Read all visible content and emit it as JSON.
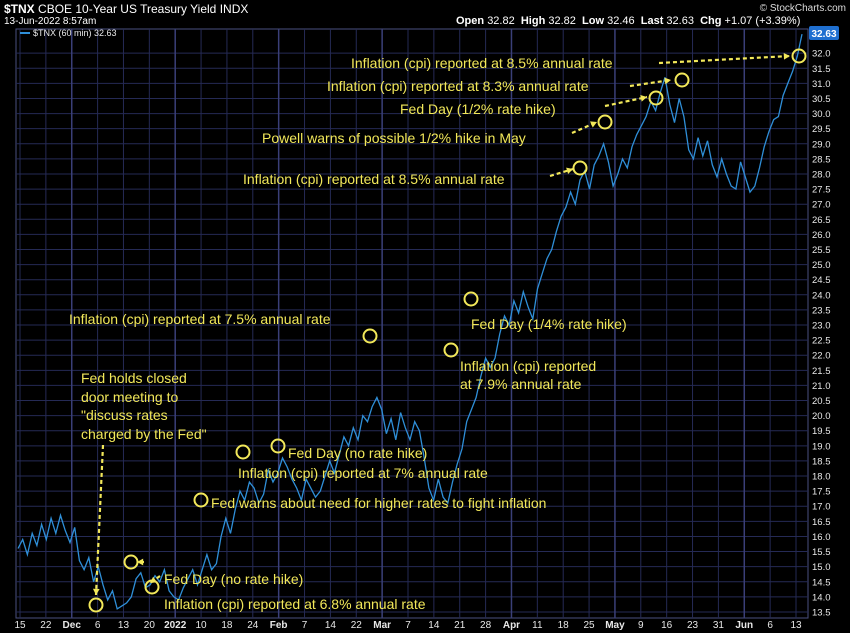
{
  "header": {
    "ticker": "$TNX",
    "name": "CBOE 10-Year US Treasury Yield",
    "exchange": "INDX",
    "date": "13-Jun-2022 8:57am",
    "watermark": "© StockCharts.com",
    "open_label": "Open",
    "open": "32.82",
    "high_label": "High",
    "high": "32.82",
    "low_label": "Low",
    "low": "32.46",
    "last_label": "Last",
    "last": "32.63",
    "chg_label": "Chg",
    "chg": "+1.07 (+3.39%)",
    "legend": "$TNX (60 min) 32.63"
  },
  "colors": {
    "background": "#000000",
    "grid": "#2a2f5a",
    "line": "#2f8fd8",
    "annotation": "#f2e85a",
    "last_badge": "#1f6fd0"
  },
  "chart_data": {
    "type": "line",
    "title": "$TNX CBOE 10-Year US Treasury Yield INDX",
    "series": [
      {
        "name": "$TNX (60 min)",
        "values": [
          15.6,
          15.9,
          15.4,
          16.1,
          15.7,
          16.4,
          15.9,
          16.6,
          16.1,
          16.7,
          16.2,
          15.8,
          16.3,
          15.2,
          14.9,
          15.3,
          14.5,
          15.0,
          14.4,
          13.9,
          14.2,
          13.6,
          13.7,
          13.8,
          14.0,
          14.6,
          14.8,
          14.3,
          14.4,
          14.7,
          14.5,
          14.9,
          14.2,
          14.0,
          13.9,
          14.3,
          14.6,
          14.9,
          14.4,
          14.9,
          15.4,
          14.9,
          15.1,
          16.0,
          16.6,
          16.1,
          16.9,
          17.5,
          17.2,
          17.8,
          17.6,
          17.1,
          17.4,
          18.2,
          17.8,
          18.1,
          18.6,
          18.3,
          17.9,
          17.6,
          17.2,
          17.9,
          17.6,
          17.3,
          17.5,
          18.0,
          18.5,
          18.1,
          18.7,
          19.3,
          19.0,
          19.6,
          19.2,
          20.0,
          19.8,
          20.3,
          20.6,
          20.2,
          19.4,
          19.9,
          19.2,
          20.1,
          19.6,
          19.2,
          19.8,
          19.5,
          18.6,
          17.6,
          17.2,
          17.9,
          17.3,
          17.1,
          17.8,
          18.4,
          18.9,
          19.8,
          20.2,
          20.6,
          21.3,
          21.9,
          21.6,
          21.9,
          22.7,
          23.3,
          23.0,
          23.8,
          23.4,
          24.1,
          23.6,
          23.2,
          24.2,
          24.7,
          25.2,
          25.5,
          26.1,
          26.6,
          26.9,
          27.4,
          27.0,
          27.8,
          28.1,
          27.5,
          28.3,
          28.6,
          29.0,
          28.4,
          27.6,
          28.0,
          28.5,
          28.2,
          28.9,
          29.3,
          29.6,
          29.9,
          30.4,
          30.1,
          30.7,
          31.2,
          30.3,
          29.7,
          30.5,
          29.9,
          28.8,
          28.5,
          29.2,
          28.6,
          29.1,
          28.3,
          27.9,
          28.5,
          28.0,
          27.6,
          27.5,
          28.4,
          27.9,
          27.4,
          27.6,
          28.2,
          28.9,
          29.4,
          29.8,
          29.9,
          30.6,
          31.0,
          31.4,
          31.9,
          32.63
        ]
      }
    ],
    "ylim": [
      13.3,
      32.8
    ],
    "y_ticks": [
      "13.5",
      "14.0",
      "14.5",
      "15.0",
      "15.5",
      "16.0",
      "16.5",
      "17.0",
      "17.5",
      "18.0",
      "18.5",
      "19.0",
      "19.5",
      "20.0",
      "20.5",
      "21.0",
      "21.5",
      "22.0",
      "22.5",
      "23.0",
      "23.5",
      "24.0",
      "24.5",
      "25.0",
      "25.5",
      "26.0",
      "26.5",
      "27.0",
      "27.5",
      "28.0",
      "28.5",
      "29.0",
      "29.5",
      "30.0",
      "30.5",
      "31.0",
      "31.5",
      "32.0"
    ],
    "x_ticks": [
      {
        "label": "15",
        "bold": false
      },
      {
        "label": "22",
        "bold": false
      },
      {
        "label": "Dec",
        "bold": true
      },
      {
        "label": "6",
        "bold": false
      },
      {
        "label": "13",
        "bold": false
      },
      {
        "label": "20",
        "bold": false
      },
      {
        "label": "2022",
        "bold": true
      },
      {
        "label": "10",
        "bold": false
      },
      {
        "label": "18",
        "bold": false
      },
      {
        "label": "24",
        "bold": false
      },
      {
        "label": "Feb",
        "bold": true
      },
      {
        "label": "7",
        "bold": false
      },
      {
        "label": "14",
        "bold": false
      },
      {
        "label": "22",
        "bold": false
      },
      {
        "label": "Mar",
        "bold": true
      },
      {
        "label": "7",
        "bold": false
      },
      {
        "label": "14",
        "bold": false
      },
      {
        "label": "21",
        "bold": false
      },
      {
        "label": "28",
        "bold": false
      },
      {
        "label": "Apr",
        "bold": true
      },
      {
        "label": "11",
        "bold": false
      },
      {
        "label": "18",
        "bold": false
      },
      {
        "label": "25",
        "bold": false
      },
      {
        "label": "May",
        "bold": true
      },
      {
        "label": "9",
        "bold": false
      },
      {
        "label": "16",
        "bold": false
      },
      {
        "label": "23",
        "bold": false
      },
      {
        "label": "31",
        "bold": false
      },
      {
        "label": "Jun",
        "bold": true
      },
      {
        "label": "6",
        "bold": false
      },
      {
        "label": "13",
        "bold": false
      }
    ],
    "last_value": "32.63",
    "grid": true,
    "annotations": [
      {
        "text": "Inflation (cpi) reported at 8.5% annual rate"
      },
      {
        "text": "Inflation (cpi) reported at 8.3% annual rate"
      },
      {
        "text": "Fed Day (1/2% rate hike)"
      },
      {
        "text": "Powell warns of possible 1/2% hike in May"
      },
      {
        "text": "Inflation (cpi) reported at 8.5% annual rate"
      },
      {
        "text": "Fed Day (1/4% rate hike)"
      },
      {
        "text": "Inflation (cpi) reported"
      },
      {
        "text": "at 7.9% annual rate"
      },
      {
        "text": "Inflation (cpi) reported at 7.5% annual rate"
      },
      {
        "text": "Fed holds closed"
      },
      {
        "text": "door meeting to"
      },
      {
        "text": "\"discuss rates"
      },
      {
        "text": "charged by the Fed\""
      },
      {
        "text": "Fed Day (no rate hike)"
      },
      {
        "text": "Inflation (cpi) reported at 7% annual rate"
      },
      {
        "text": "Fed warns about need for higher rates to fight inflation"
      },
      {
        "text": "Fed Day (no rate hike)"
      },
      {
        "text": "Inflation (cpi) reported at 6.8% annual rate"
      }
    ]
  }
}
